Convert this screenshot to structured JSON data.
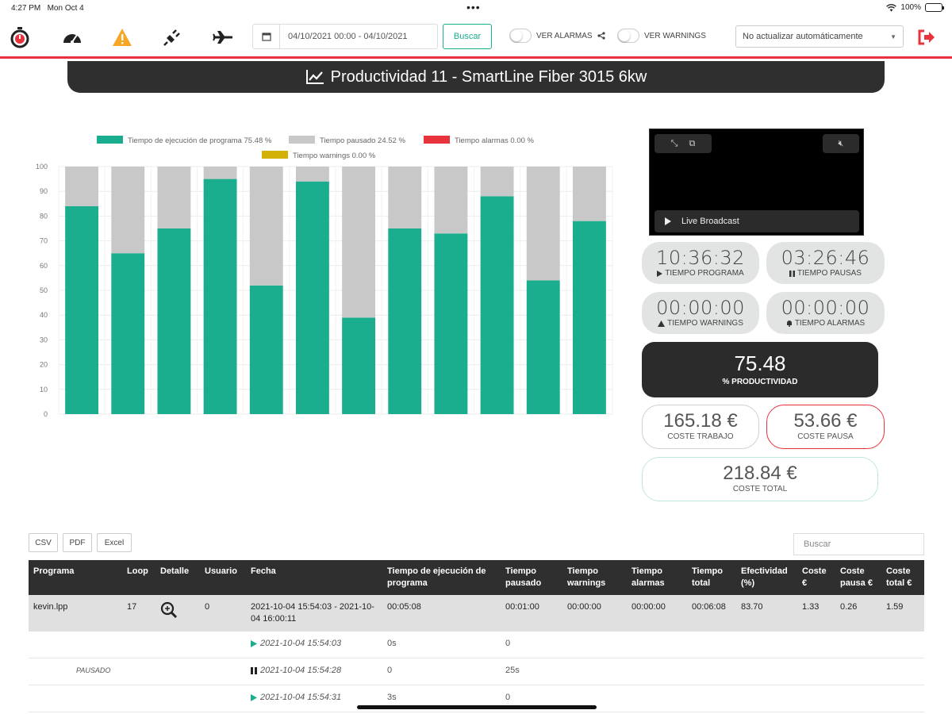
{
  "status_bar": {
    "time": "4:27 PM",
    "date": "Mon Oct 4",
    "battery": "100%"
  },
  "toolbar": {
    "date_range": "04/10/2021 00:00 - 04/10/2021",
    "search_button": "Buscar",
    "toggle_alarms": "VER ALARMAS",
    "toggle_warnings": "VER WARNINGS",
    "refresh_select": "No actualizar automáticamente"
  },
  "title": "Productividad 11 - SmartLine Fiber 3015 6kw",
  "chart_data": {
    "type": "bar",
    "stacked": true,
    "legend": [
      {
        "label": "Tiempo de ejecución de programa 75.48 %",
        "color": "#1aae8e"
      },
      {
        "label": "Tiempo pausado 24.52 %",
        "color": "#c8c8c8"
      },
      {
        "label": "Tiempo alarmas 0.00 %",
        "color": "#e8323c"
      },
      {
        "label": "Tiempo warnings 0.00 %",
        "color": "#d4b106"
      }
    ],
    "legend_position": "top",
    "y_ticks": [
      "0",
      "10",
      "20",
      "30",
      "40",
      "50",
      "60",
      "70",
      "80",
      "90",
      "100"
    ],
    "ylim": [
      0,
      100
    ],
    "grid": true,
    "series": [
      {
        "values": [
          84,
          65,
          75,
          95,
          52,
          94,
          39,
          75,
          73,
          88,
          54,
          78
        ],
        "color": "#1aae8e"
      },
      {
        "values": [
          16,
          35,
          25,
          5,
          48,
          6,
          61,
          25,
          27,
          12,
          46,
          22
        ],
        "color": "#c8c8c8"
      }
    ]
  },
  "video": {
    "live_label": "Live Broadcast"
  },
  "stats": {
    "tiempo_programa": {
      "value": "10:36:32",
      "label": "TIEMPO PROGRAMA"
    },
    "tiempo_pausas": {
      "value": "03:26:46",
      "label": "TIEMPO PAUSAS"
    },
    "tiempo_warnings": {
      "value": "00:00:00",
      "label": "TIEMPO WARNINGS"
    },
    "tiempo_alarmas": {
      "value": "00:00:00",
      "label": "TIEMPO ALARMAS"
    },
    "productividad": {
      "value": "75.48",
      "label": "% PRODUCTIVIDAD"
    },
    "coste_trabajo": {
      "value": "165.18 €",
      "label": "COSTE TRABAJO"
    },
    "coste_pausa": {
      "value": "53.66 €",
      "label": "COSTE PAUSA"
    },
    "coste_total": {
      "value": "218.84 €",
      "label": "COSTE TOTAL"
    }
  },
  "export_buttons": [
    "CSV",
    "PDF",
    "Excel"
  ],
  "table_search_placeholder": "Buscar",
  "table": {
    "headers": [
      "Programa",
      "Loop",
      "Detalle",
      "Usuario",
      "Fecha",
      "Tiempo de ejecución de programa",
      "Tiempo pausado",
      "Tiempo warnings",
      "Tiempo alarmas",
      "Tiempo total",
      "Efectividad (%)",
      "Coste €",
      "Coste pausa €",
      "Coste total €"
    ],
    "main_row": {
      "programa": "kevin.lpp",
      "loop": "17",
      "usuario": "0",
      "fecha": "2021-10-04 15:54:03 - 2021-10-04 16:00:11",
      "t_ejecucion": "00:05:08",
      "t_pausado": "00:01:00",
      "t_warnings": "00:00:00",
      "t_alarmas": "00:00:00",
      "t_total": "00:06:08",
      "efectividad": "83.70",
      "coste": "1.33",
      "coste_pausa": "0.26",
      "coste_total": "1.59"
    },
    "sub_rows": [
      {
        "state": "",
        "time": "2021-10-04 15:54:03",
        "exec": "0s",
        "paused": "0",
        "icon": "play"
      },
      {
        "state": "PAUSADO",
        "time": "2021-10-04 15:54:28",
        "exec": "0",
        "paused": "25s",
        "icon": "pause"
      },
      {
        "state": "",
        "time": "2021-10-04 15:54:31",
        "exec": "3s",
        "paused": "0",
        "icon": "play"
      }
    ]
  }
}
